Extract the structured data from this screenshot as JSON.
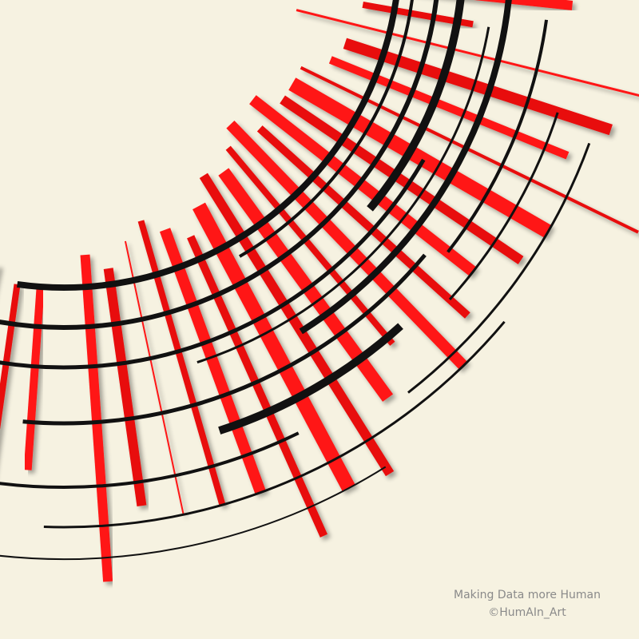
{
  "caption": {
    "line1": "Making Data more Human",
    "line2": "©HumAIn_Art"
  },
  "colors": {
    "background": "#f6f2e1",
    "bar_bright": "#ff1a1a",
    "bar_dark": "#8a0000",
    "arc": "#111111",
    "caption": "#8a8a8a"
  }
}
